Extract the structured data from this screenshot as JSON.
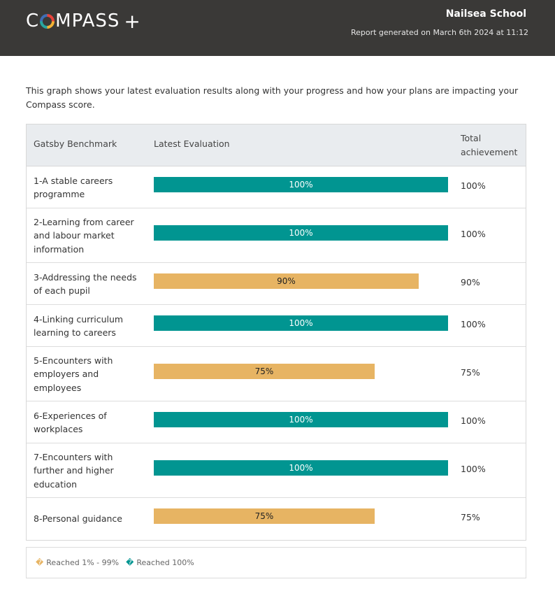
{
  "header": {
    "logo_text_before": "C",
    "logo_text_after": "MPASS",
    "logo_plus": "+",
    "school": "Nailsea School",
    "generated": "Report generated on March 6th 2024 at 11:12",
    "background": "#3a3937"
  },
  "intro": "This graph shows your latest evaluation results along with your progress and how your plans are impacting your Compass score.",
  "chart_data": {
    "type": "bar",
    "orientation": "horizontal",
    "columns": [
      "Gatsby Benchmark",
      "Latest Evaluation",
      "Total achievement"
    ],
    "categories": [
      "1-A stable careers programme",
      "2-Learning from career and labour market information",
      "3-Addressing the needs of each pupil",
      "4-Linking curriculum learning to careers",
      "5-Encounters with employers and employees",
      "6-Experiences of workplaces",
      "7-Encounters with further and higher education",
      "8-Personal guidance"
    ],
    "values": [
      100,
      100,
      90,
      100,
      75,
      100,
      100,
      75
    ],
    "bar_labels": [
      "100%",
      "100%",
      "90%",
      "100%",
      "75%",
      "100%",
      "100%",
      "75%"
    ],
    "totals": [
      "100%",
      "100%",
      "90%",
      "100%",
      "75%",
      "100%",
      "100%",
      "75%"
    ],
    "xlim": [
      0,
      100
    ],
    "colors": {
      "full": "#019591",
      "partial": "#e7b463"
    },
    "legend": [
      {
        "marker": "�",
        "label": "Reached 1% - 99%",
        "color": "#e7b463"
      },
      {
        "marker": "�",
        "label": "Reached 100%",
        "color": "#019591"
      }
    ]
  }
}
